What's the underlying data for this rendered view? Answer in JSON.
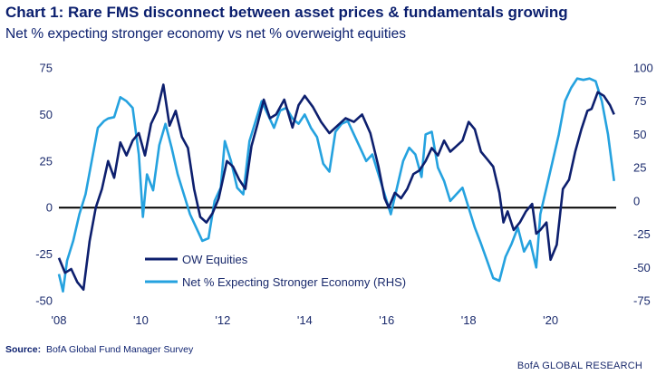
{
  "title": "Chart 1:  Rare FMS disconnect between asset prices & fundamentals growing",
  "subtitle": "Net % expecting stronger economy vs net % overweight equities",
  "source_label": "Source:",
  "source_text": "BofA Global Fund Manager Survey",
  "brand": "BofA GLOBAL RESEARCH",
  "colors": {
    "ow_equities": "#0d1f6e",
    "economy": "#25a2df",
    "axis": "#000000"
  },
  "chart_data": {
    "type": "line",
    "x_tick_labels": [
      "'08",
      "'10",
      "'12",
      "'14",
      "'16",
      "'18",
      "'20"
    ],
    "x_range": [
      2008,
      2021.6
    ],
    "y_left": {
      "ticks": [
        "75",
        "50",
        "25",
        "0",
        "-25",
        "-50"
      ],
      "range": [
        -50,
        75
      ]
    },
    "y_right": {
      "ticks": [
        "100",
        "75",
        "50",
        "25",
        "0",
        "-25",
        "-50",
        "-75"
      ],
      "range": [
        -75,
        100
      ]
    },
    "series": [
      {
        "name": "OW Equities",
        "axis": "left",
        "points": [
          [
            2008.0,
            -27
          ],
          [
            2008.15,
            -35
          ],
          [
            2008.3,
            -33
          ],
          [
            2008.45,
            -40
          ],
          [
            2008.6,
            -44
          ],
          [
            2008.75,
            -18
          ],
          [
            2008.9,
            0
          ],
          [
            2009.05,
            10
          ],
          [
            2009.2,
            25
          ],
          [
            2009.35,
            16
          ],
          [
            2009.5,
            35
          ],
          [
            2009.65,
            28
          ],
          [
            2009.8,
            36
          ],
          [
            2009.95,
            40
          ],
          [
            2010.1,
            28
          ],
          [
            2010.25,
            45
          ],
          [
            2010.4,
            52
          ],
          [
            2010.55,
            66
          ],
          [
            2010.7,
            44
          ],
          [
            2010.85,
            52
          ],
          [
            2011.0,
            38
          ],
          [
            2011.15,
            32
          ],
          [
            2011.3,
            10
          ],
          [
            2011.45,
            -5
          ],
          [
            2011.6,
            -8
          ],
          [
            2011.75,
            -3
          ],
          [
            2011.9,
            5
          ],
          [
            2012.1,
            25
          ],
          [
            2012.25,
            22
          ],
          [
            2012.4,
            15
          ],
          [
            2012.55,
            10
          ],
          [
            2012.7,
            33
          ],
          [
            2012.85,
            45
          ],
          [
            2013.0,
            58
          ],
          [
            2013.15,
            48
          ],
          [
            2013.3,
            50
          ],
          [
            2013.5,
            58
          ],
          [
            2013.7,
            43
          ],
          [
            2013.85,
            55
          ],
          [
            2014.0,
            60
          ],
          [
            2014.2,
            54
          ],
          [
            2014.4,
            46
          ],
          [
            2014.6,
            40
          ],
          [
            2014.8,
            44
          ],
          [
            2015.0,
            48
          ],
          [
            2015.2,
            46
          ],
          [
            2015.4,
            50
          ],
          [
            2015.6,
            40
          ],
          [
            2015.8,
            22
          ],
          [
            2015.95,
            5
          ],
          [
            2016.05,
            0
          ],
          [
            2016.2,
            8
          ],
          [
            2016.35,
            5
          ],
          [
            2016.5,
            10
          ],
          [
            2016.65,
            18
          ],
          [
            2016.8,
            20
          ],
          [
            2016.95,
            25
          ],
          [
            2017.1,
            32
          ],
          [
            2017.25,
            28
          ],
          [
            2017.4,
            36
          ],
          [
            2017.55,
            30
          ],
          [
            2017.7,
            33
          ],
          [
            2017.85,
            36
          ],
          [
            2018.0,
            46
          ],
          [
            2018.15,
            42
          ],
          [
            2018.3,
            30
          ],
          [
            2018.45,
            26
          ],
          [
            2018.6,
            22
          ],
          [
            2018.75,
            8
          ],
          [
            2018.85,
            -8
          ],
          [
            2018.95,
            -2
          ],
          [
            2019.1,
            -12
          ],
          [
            2019.25,
            -8
          ],
          [
            2019.4,
            -2
          ],
          [
            2019.55,
            2
          ],
          [
            2019.65,
            -14
          ],
          [
            2019.75,
            -12
          ],
          [
            2019.9,
            -8
          ],
          [
            2020.0,
            -28
          ],
          [
            2020.15,
            -20
          ],
          [
            2020.3,
            10
          ],
          [
            2020.45,
            15
          ],
          [
            2020.6,
            30
          ],
          [
            2020.75,
            42
          ],
          [
            2020.9,
            52
          ],
          [
            2021.0,
            53
          ],
          [
            2021.15,
            62
          ],
          [
            2021.3,
            60
          ],
          [
            2021.45,
            55
          ],
          [
            2021.55,
            50
          ]
        ]
      },
      {
        "name": "Net % Expecting Stronger Economy (RHS)",
        "axis": "right",
        "points": [
          [
            2008.0,
            -55
          ],
          [
            2008.1,
            -68
          ],
          [
            2008.2,
            -45
          ],
          [
            2008.35,
            -30
          ],
          [
            2008.5,
            -10
          ],
          [
            2008.65,
            5
          ],
          [
            2008.8,
            30
          ],
          [
            2008.95,
            55
          ],
          [
            2009.1,
            60
          ],
          [
            2009.2,
            62
          ],
          [
            2009.35,
            63
          ],
          [
            2009.5,
            78
          ],
          [
            2009.65,
            75
          ],
          [
            2009.8,
            70
          ],
          [
            2009.95,
            35
          ],
          [
            2010.05,
            -12
          ],
          [
            2010.15,
            20
          ],
          [
            2010.3,
            8
          ],
          [
            2010.45,
            42
          ],
          [
            2010.6,
            58
          ],
          [
            2010.75,
            40
          ],
          [
            2010.9,
            20
          ],
          [
            2011.05,
            5
          ],
          [
            2011.2,
            -10
          ],
          [
            2011.35,
            -20
          ],
          [
            2011.5,
            -30
          ],
          [
            2011.65,
            -28
          ],
          [
            2011.8,
            0
          ],
          [
            2011.95,
            10
          ],
          [
            2012.05,
            45
          ],
          [
            2012.2,
            30
          ],
          [
            2012.35,
            10
          ],
          [
            2012.5,
            5
          ],
          [
            2012.65,
            45
          ],
          [
            2012.8,
            60
          ],
          [
            2012.95,
            75
          ],
          [
            2013.1,
            65
          ],
          [
            2013.25,
            55
          ],
          [
            2013.4,
            68
          ],
          [
            2013.55,
            70
          ],
          [
            2013.7,
            62
          ],
          [
            2013.85,
            58
          ],
          [
            2014.0,
            65
          ],
          [
            2014.15,
            55
          ],
          [
            2014.3,
            48
          ],
          [
            2014.45,
            28
          ],
          [
            2014.6,
            22
          ],
          [
            2014.75,
            52
          ],
          [
            2014.9,
            58
          ],
          [
            2015.05,
            60
          ],
          [
            2015.2,
            50
          ],
          [
            2015.35,
            40
          ],
          [
            2015.5,
            30
          ],
          [
            2015.65,
            35
          ],
          [
            2015.8,
            20
          ],
          [
            2015.95,
            5
          ],
          [
            2016.1,
            -10
          ],
          [
            2016.25,
            10
          ],
          [
            2016.4,
            30
          ],
          [
            2016.55,
            40
          ],
          [
            2016.7,
            35
          ],
          [
            2016.85,
            18
          ],
          [
            2016.95,
            50
          ],
          [
            2017.1,
            52
          ],
          [
            2017.25,
            25
          ],
          [
            2017.4,
            15
          ],
          [
            2017.55,
            0
          ],
          [
            2017.7,
            5
          ],
          [
            2017.85,
            10
          ],
          [
            2018.0,
            -5
          ],
          [
            2018.15,
            -20
          ],
          [
            2018.3,
            -32
          ],
          [
            2018.45,
            -45
          ],
          [
            2018.6,
            -58
          ],
          [
            2018.75,
            -60
          ],
          [
            2018.9,
            -42
          ],
          [
            2019.05,
            -32
          ],
          [
            2019.2,
            -20
          ],
          [
            2019.35,
            -38
          ],
          [
            2019.5,
            -30
          ],
          [
            2019.65,
            -50
          ],
          [
            2019.75,
            -10
          ],
          [
            2019.9,
            10
          ],
          [
            2020.05,
            30
          ],
          [
            2020.2,
            50
          ],
          [
            2020.35,
            75
          ],
          [
            2020.5,
            85
          ],
          [
            2020.65,
            92
          ],
          [
            2020.8,
            91
          ],
          [
            2020.95,
            92
          ],
          [
            2021.1,
            90
          ],
          [
            2021.25,
            75
          ],
          [
            2021.4,
            50
          ],
          [
            2021.55,
            15
          ]
        ]
      }
    ]
  }
}
